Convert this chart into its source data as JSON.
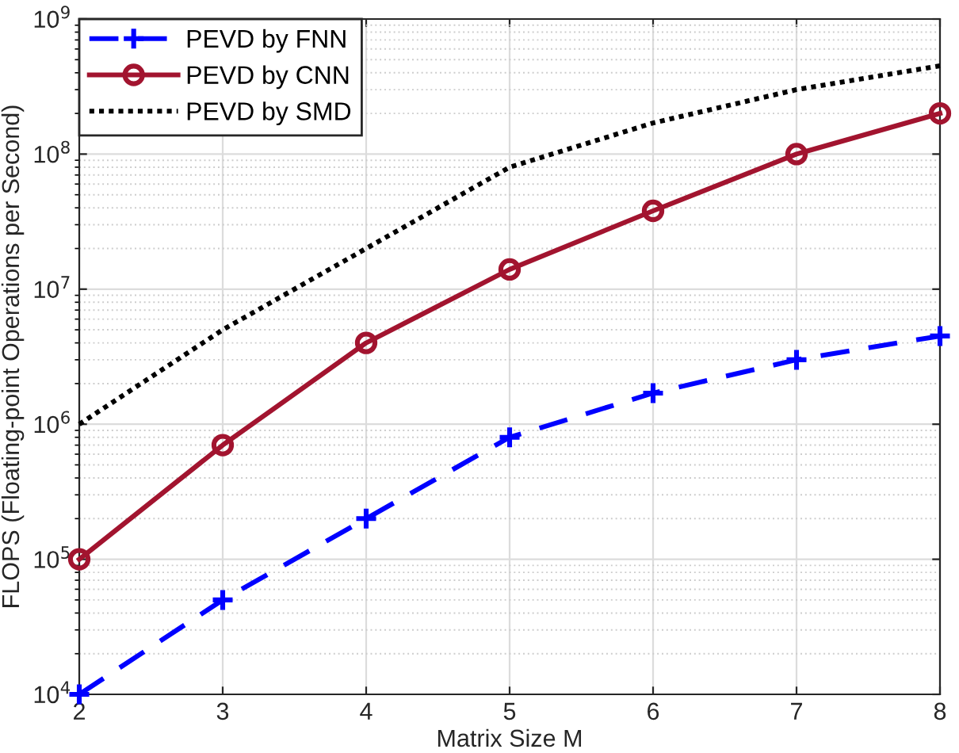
{
  "chart_data": {
    "type": "line",
    "xlabel": "Matrix Size M",
    "ylabel": "FLOPS (Floating-point Operations per Second)",
    "x": [
      2,
      3,
      4,
      5,
      6,
      7,
      8
    ],
    "log": "y",
    "grid": true,
    "legend": "top left",
    "xlim": [
      2,
      8
    ],
    "xticks": [
      2,
      3,
      4,
      5,
      6,
      7,
      8
    ],
    "ylim": [
      10000,
      1000000000
    ],
    "yticks": [
      {
        "value": 10000,
        "label": "10$^{4}$"
      },
      {
        "value": 100000,
        "label": "10$^{5}$"
      },
      {
        "value": 1000000,
        "label": "10$^{6}$"
      },
      {
        "value": 10000000,
        "label": "10$^{7}$"
      },
      {
        "value": 100000000,
        "label": "10$^{8}$"
      },
      {
        "value": 1000000000,
        "label": "10$^{9}$"
      }
    ],
    "series": [
      {
        "name": "PEVD by FNN",
        "color": "#0000ff",
        "marker": "cross",
        "line_style": "dashed",
        "values": [
          10000,
          50000,
          200000,
          800000,
          1700000,
          3000000,
          4500000
        ]
      },
      {
        "name": "PEVD by CNN",
        "color": "#a2142f",
        "marker": "circle",
        "line_style": "solid",
        "values": [
          100000,
          700000,
          4000000,
          14000000,
          38000000,
          100000000,
          200000000
        ]
      },
      {
        "name": "PEVD by SMD",
        "color": "#000000",
        "marker": "none",
        "line_style": "dotted",
        "values": [
          1000000,
          5000000,
          20000000,
          80000000,
          170000000,
          300000000,
          450000000
        ]
      }
    ]
  }
}
